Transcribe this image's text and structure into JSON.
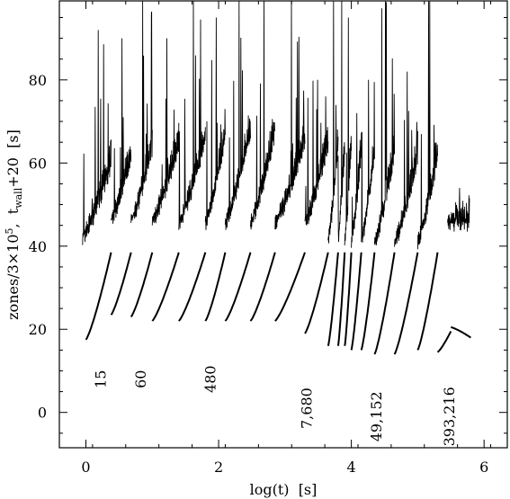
{
  "chart_data": {
    "type": "line",
    "xlabel": "log(t)  [s]",
    "ylabel": {
      "base": "zones/3×10",
      "sup": "5",
      "sep": ",  t",
      "sub": "wall",
      "tail": "+20  [s]"
    },
    "xlim": [
      -0.4,
      6.35
    ],
    "ylim": [
      -8.5,
      99
    ],
    "x_ticks": [
      0,
      2,
      4,
      6
    ],
    "x_tick_labels": [
      "0",
      "2",
      "4",
      "6"
    ],
    "y_ticks": [
      0,
      20,
      40,
      60,
      80
    ],
    "y_tick_labels": [
      "0",
      "20",
      "40",
      "60",
      "80"
    ],
    "annotations": [
      {
        "text": "15",
        "x": 0.3,
        "y": 8
      },
      {
        "text": "60",
        "x": 0.9,
        "y": 8
      },
      {
        "text": "480",
        "x": 1.95,
        "y": 8
      },
      {
        "text": "7,680",
        "x": 3.4,
        "y": 1
      },
      {
        "text": "49,152",
        "x": 4.45,
        "y": -1
      },
      {
        "text": "393,216",
        "x": 5.55,
        "y": -1
      }
    ],
    "series": [
      {
        "role": "zones",
        "segments": [
          {
            "x": [
              0.0,
              0.38
            ],
            "y": [
              17.5,
              38.5
            ]
          },
          {
            "x": [
              0.38,
              0.68
            ],
            "y": [
              23.5,
              38.5
            ]
          },
          {
            "x": [
              0.68,
              1.0
            ],
            "y": [
              23,
              38.5
            ]
          },
          {
            "x": [
              1.0,
              1.4
            ],
            "y": [
              22,
              38.5
            ]
          },
          {
            "x": [
              1.4,
              1.8
            ],
            "y": [
              22,
              38.5
            ]
          },
          {
            "x": [
              1.8,
              2.1
            ],
            "y": [
              22,
              38.5
            ]
          },
          {
            "x": [
              2.1,
              2.48
            ],
            "y": [
              22,
              38.5
            ]
          },
          {
            "x": [
              2.48,
              2.85
            ],
            "y": [
              22,
              38.5
            ]
          },
          {
            "x": [
              2.85,
              3.3
            ],
            "y": [
              22,
              38.5
            ]
          },
          {
            "x": [
              3.3,
              3.65
            ],
            "y": [
              19,
              38.5
            ]
          },
          {
            "x": [
              3.65,
              3.8
            ],
            "y": [
              16,
              38.5
            ]
          },
          {
            "x": [
              3.8,
              3.9
            ],
            "y": [
              16,
              38.5
            ]
          },
          {
            "x": [
              3.9,
              4.0
            ],
            "y": [
              16,
              38.5
            ]
          },
          {
            "x": [
              4.0,
              4.15
            ],
            "y": [
              15,
              38.5
            ]
          },
          {
            "x": [
              4.15,
              4.35
            ],
            "y": [
              15,
              38.5
            ]
          },
          {
            "x": [
              4.35,
              4.65
            ],
            "y": [
              14,
              38.5
            ]
          },
          {
            "x": [
              4.65,
              5.0
            ],
            "y": [
              14,
              38.5
            ]
          },
          {
            "x": [
              5.0,
              5.3
            ],
            "y": [
              15,
              38.5
            ]
          },
          {
            "x": [
              5.3,
              5.5
            ],
            "y": [
              14.5,
              19.5
            ]
          },
          {
            "x": [
              5.5,
              5.8
            ],
            "y": [
              20.5,
              18
            ]
          }
        ]
      },
      {
        "role": "t_wall",
        "segments": [
          {
            "x": [
              -0.05,
              0.38
            ],
            "y": [
              42.5,
              60
            ],
            "spike_max": 92
          },
          {
            "x": [
              0.38,
              0.68
            ],
            "y": [
              46.5,
              62
            ],
            "spike_max": 90
          },
          {
            "x": [
              0.68,
              1.0
            ],
            "y": [
              46.5,
              64
            ],
            "spike_max": 99
          },
          {
            "x": [
              1.0,
              1.4
            ],
            "y": [
              46.5,
              65
            ],
            "spike_max": 90
          },
          {
            "x": [
              1.4,
              1.8
            ],
            "y": [
              46,
              66
            ],
            "spike_max": 99
          },
          {
            "x": [
              1.8,
              2.1
            ],
            "y": [
              46,
              67
            ],
            "spike_max": 95
          },
          {
            "x": [
              2.1,
              2.48
            ],
            "y": [
              46,
              68
            ],
            "spike_max": 99
          },
          {
            "x": [
              2.48,
              2.85
            ],
            "y": [
              46,
              68
            ],
            "spike_max": 99
          },
          {
            "x": [
              2.85,
              3.3
            ],
            "y": [
              46,
              66
            ],
            "spike_max": 99
          },
          {
            "x": [
              3.3,
              3.65
            ],
            "y": [
              46,
              65
            ],
            "spike_max": 80
          },
          {
            "x": [
              3.65,
              3.8
            ],
            "y": [
              42,
              64
            ],
            "spike_max": 99
          },
          {
            "x": [
              3.8,
              3.9
            ],
            "y": [
              42,
              64
            ],
            "spike_max": 99
          },
          {
            "x": [
              3.9,
              4.0
            ],
            "y": [
              42,
              64
            ],
            "spike_max": 95
          },
          {
            "x": [
              4.0,
              4.15
            ],
            "y": [
              42,
              63
            ],
            "spike_max": 72
          },
          {
            "x": [
              4.15,
              4.35
            ],
            "y": [
              41.5,
              63
            ],
            "spike_max": 80
          },
          {
            "x": [
              4.35,
              4.65
            ],
            "y": [
              41.5,
              63
            ],
            "spike_max": 99
          },
          {
            "x": [
              4.65,
              5.0
            ],
            "y": [
              41.5,
              62
            ],
            "spike_max": 82
          },
          {
            "x": [
              5.0,
              5.3
            ],
            "y": [
              41.5,
              62
            ],
            "spike_max": 99
          },
          {
            "x": [
              5.45,
              5.78
            ],
            "y": [
              46,
              46
            ],
            "spike_max": 54
          }
        ]
      }
    ]
  }
}
